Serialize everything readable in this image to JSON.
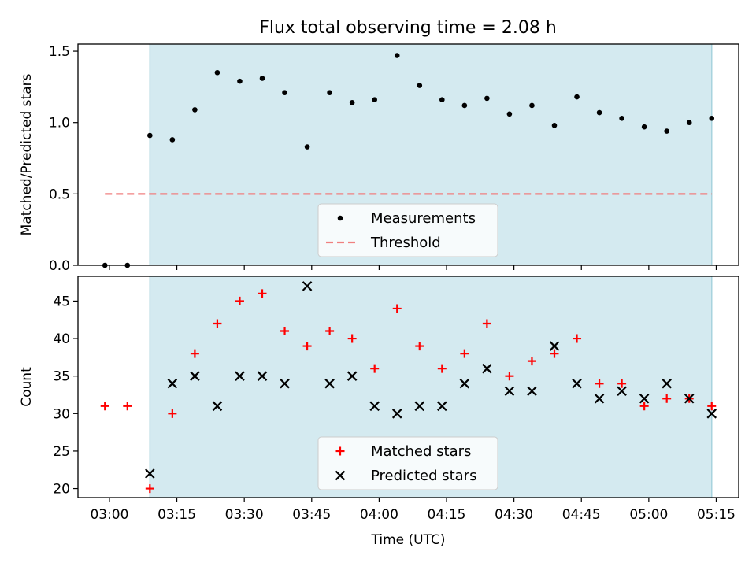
{
  "title": "Flux total observing time = 2.08 h",
  "chart_data": [
    {
      "type": "scatter",
      "ylabel": "Matched/Predicted stars",
      "ylim": [
        0,
        1.55
      ],
      "xlim": [
        "02:53",
        "05:20"
      ],
      "yticks": [
        "0.0",
        "0.5",
        "1.0",
        "1.5"
      ],
      "shaded_span": [
        "03:09",
        "05:14"
      ],
      "legend": {
        "placement": "lower-center",
        "entries": [
          "Measurements",
          "Threshold"
        ]
      },
      "series": [
        {
          "name": "Measurements",
          "color": "#000000",
          "marker": "dot",
          "x": [
            "02:59",
            "03:04",
            "03:09",
            "03:14",
            "03:19",
            "03:24",
            "03:29",
            "03:34",
            "03:39",
            "03:44",
            "03:49",
            "03:54",
            "03:59",
            "04:04",
            "04:09",
            "04:14",
            "04:19",
            "04:24",
            "04:29",
            "04:34",
            "04:39",
            "04:44",
            "04:49",
            "04:54",
            "04:59",
            "05:04",
            "05:09",
            "05:14"
          ],
          "y": [
            0.0,
            0.0,
            0.91,
            0.88,
            1.09,
            1.35,
            1.29,
            1.31,
            1.21,
            0.83,
            1.21,
            1.14,
            1.16,
            1.47,
            1.26,
            1.16,
            1.12,
            1.17,
            1.06,
            1.12,
            0.98,
            1.18,
            1.07,
            1.03,
            0.97,
            0.94,
            1.0,
            1.03
          ]
        },
        {
          "name": "Threshold",
          "color": "#f08080",
          "style": "dashed",
          "x": [
            "02:59",
            "05:14"
          ],
          "y": [
            0.5,
            0.5
          ]
        }
      ]
    },
    {
      "type": "scatter",
      "xlabel": "Time (UTC)",
      "ylabel": "Count",
      "ylim": [
        18.8,
        48.3
      ],
      "xlim": [
        "02:53",
        "05:20"
      ],
      "xticks": [
        "03:00",
        "03:15",
        "03:30",
        "03:45",
        "04:00",
        "04:15",
        "04:30",
        "04:45",
        "05:00",
        "05:15"
      ],
      "yticks": [
        "20",
        "25",
        "30",
        "35",
        "40",
        "45"
      ],
      "shaded_span": [
        "03:09",
        "05:14"
      ],
      "legend": {
        "placement": "lower-center",
        "entries": [
          "Matched stars",
          "Predicted stars"
        ]
      },
      "series": [
        {
          "name": "Matched stars",
          "color": "#ff0000",
          "marker": "plus",
          "x": [
            "02:59",
            "03:04",
            "03:09",
            "03:14",
            "03:19",
            "03:24",
            "03:29",
            "03:34",
            "03:39",
            "03:44",
            "03:49",
            "03:54",
            "03:59",
            "04:04",
            "04:09",
            "04:14",
            "04:19",
            "04:24",
            "04:29",
            "04:34",
            "04:39",
            "04:44",
            "04:49",
            "04:54",
            "04:59",
            "05:04",
            "05:09",
            "05:14"
          ],
          "y": [
            31,
            31,
            20,
            30,
            38,
            42,
            45,
            46,
            41,
            39,
            41,
            40,
            36,
            44,
            39,
            36,
            38,
            42,
            35,
            37,
            38,
            40,
            34,
            34,
            31,
            32,
            32,
            31
          ]
        },
        {
          "name": "Predicted stars",
          "color": "#000000",
          "marker": "x",
          "x": [
            "03:09",
            "03:14",
            "03:19",
            "03:24",
            "03:29",
            "03:34",
            "03:39",
            "03:44",
            "03:49",
            "03:54",
            "03:59",
            "04:04",
            "04:09",
            "04:14",
            "04:19",
            "04:24",
            "04:29",
            "04:34",
            "04:39",
            "04:44",
            "04:49",
            "04:54",
            "04:59",
            "05:04",
            "05:09",
            "05:14"
          ],
          "y": [
            22,
            34,
            35,
            31,
            35,
            35,
            34,
            47,
            34,
            35,
            31,
            30,
            31,
            31,
            34,
            36,
            33,
            33,
            39,
            34,
            32,
            33,
            32,
            34,
            32,
            30
          ]
        }
      ]
    }
  ],
  "colors": {
    "shade": "#d4eaf0",
    "shade_edge": "#a8d3de"
  }
}
